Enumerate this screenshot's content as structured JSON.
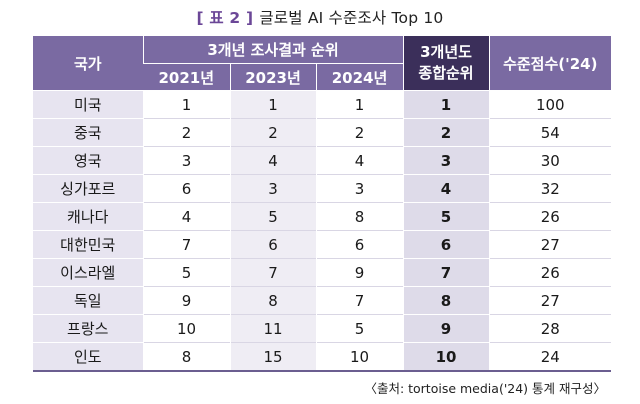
{
  "caption": {
    "tag": "[ 표 2 ]",
    "title": "글로벌 AI 수준조사 Top 10"
  },
  "table": {
    "headers": {
      "country": "국가",
      "three_year_group": "3개년 조사결과 순위",
      "years": [
        "2021년",
        "2023년",
        "2024년"
      ],
      "overall": "3개년도\n종합순위",
      "score": "수준점수('24)"
    },
    "rows": [
      {
        "country": "미국",
        "y2021": "1",
        "y2023": "1",
        "y2024": "1",
        "overall": "1",
        "score": "100"
      },
      {
        "country": "중국",
        "y2021": "2",
        "y2023": "2",
        "y2024": "2",
        "overall": "2",
        "score": "54"
      },
      {
        "country": "영국",
        "y2021": "3",
        "y2023": "4",
        "y2024": "4",
        "overall": "3",
        "score": "30"
      },
      {
        "country": "싱가포르",
        "y2021": "6",
        "y2023": "3",
        "y2024": "3",
        "overall": "4",
        "score": "32"
      },
      {
        "country": "캐나다",
        "y2021": "4",
        "y2023": "5",
        "y2024": "8",
        "overall": "5",
        "score": "26"
      },
      {
        "country": "대한민국",
        "y2021": "7",
        "y2023": "6",
        "y2024": "6",
        "overall": "6",
        "score": "27"
      },
      {
        "country": "이스라엘",
        "y2021": "5",
        "y2023": "7",
        "y2024": "9",
        "overall": "7",
        "score": "26"
      },
      {
        "country": "독일",
        "y2021": "9",
        "y2023": "8",
        "y2024": "7",
        "overall": "8",
        "score": "27"
      },
      {
        "country": "프랑스",
        "y2021": "10",
        "y2023": "11",
        "y2024": "5",
        "overall": "9",
        "score": "28"
      },
      {
        "country": "인도",
        "y2021": "8",
        "y2023": "15",
        "y2024": "10",
        "overall": "10",
        "score": "24"
      }
    ]
  },
  "source": "〈출처: tortoise media('24) 통계 재구성〉"
}
